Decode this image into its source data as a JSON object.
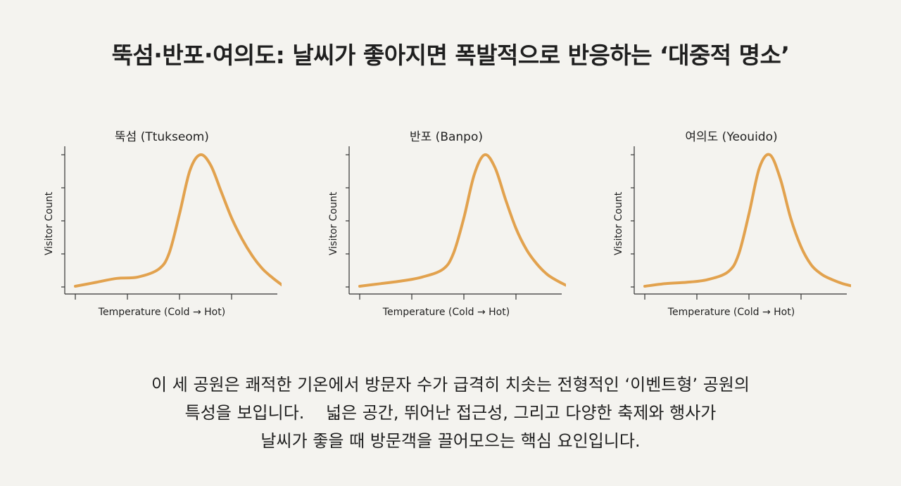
{
  "title": "뚝섬·반포·여의도: 날씨가 좋아지면 폭발적으로 반응하는 ‘대중적 명소’",
  "caption": {
    "lines": [
      "이 세 공원은 쾌적한 기온에서 방문자 수가 급격히 치솟는 전형적인 ‘이벤트형’ 공원의",
      "특성을 보입니다.    넓은 공간, 뛰어난 접근성, 그리고 다양한 축제와 행사가",
      "날씨가 좋을 때 방문객을 끌어모으는 핵심 요인입니다."
    ]
  },
  "colors": {
    "curve": "#e2a24e",
    "axis": "#333333",
    "background": "#f4f3ef"
  },
  "chart_data": [
    {
      "type": "line",
      "title": "뚝섬 (Ttukseom)",
      "xlabel": "Temperature (Cold → Hot)",
      "ylabel": "Visitor Count",
      "xlim": [
        0,
        1
      ],
      "ylim": [
        0,
        1
      ],
      "grid": false,
      "series": [
        {
          "x": [
            0,
            0.1,
            0.2,
            0.3,
            0.4,
            0.45,
            0.5,
            0.55,
            0.6,
            0.65,
            0.7,
            0.75,
            0.8,
            0.85,
            0.9,
            0.95,
            1.0
          ],
          "values": [
            0.0,
            0.03,
            0.06,
            0.07,
            0.13,
            0.25,
            0.55,
            0.88,
            1.0,
            0.92,
            0.72,
            0.52,
            0.36,
            0.23,
            0.13,
            0.06,
            0.0
          ]
        }
      ]
    },
    {
      "type": "line",
      "title": "반포 (Banpo)",
      "xlabel": "Temperature (Cold → Hot)",
      "ylabel": "Visitor Count",
      "xlim": [
        0,
        1
      ],
      "ylim": [
        0,
        1
      ],
      "grid": false,
      "series": [
        {
          "x": [
            0,
            0.1,
            0.2,
            0.3,
            0.4,
            0.45,
            0.5,
            0.55,
            0.6,
            0.65,
            0.7,
            0.75,
            0.8,
            0.85,
            0.9,
            0.95,
            1.0
          ],
          "values": [
            0.0,
            0.02,
            0.04,
            0.07,
            0.13,
            0.25,
            0.52,
            0.85,
            1.0,
            0.9,
            0.66,
            0.44,
            0.28,
            0.17,
            0.09,
            0.04,
            0.0
          ]
        }
      ]
    },
    {
      "type": "line",
      "title": "여의도 (Yeouido)",
      "xlabel": "Temperature (Cold → Hot)",
      "ylabel": "Visitor Count",
      "xlim": [
        0,
        1
      ],
      "ylim": [
        0,
        1
      ],
      "grid": false,
      "series": [
        {
          "x": [
            0,
            0.1,
            0.2,
            0.3,
            0.4,
            0.45,
            0.5,
            0.55,
            0.6,
            0.65,
            0.7,
            0.75,
            0.8,
            0.85,
            0.9,
            0.95,
            1.0
          ],
          "values": [
            0.0,
            0.02,
            0.03,
            0.05,
            0.11,
            0.24,
            0.55,
            0.9,
            1.0,
            0.82,
            0.52,
            0.3,
            0.16,
            0.09,
            0.05,
            0.02,
            0.0
          ]
        }
      ]
    }
  ]
}
